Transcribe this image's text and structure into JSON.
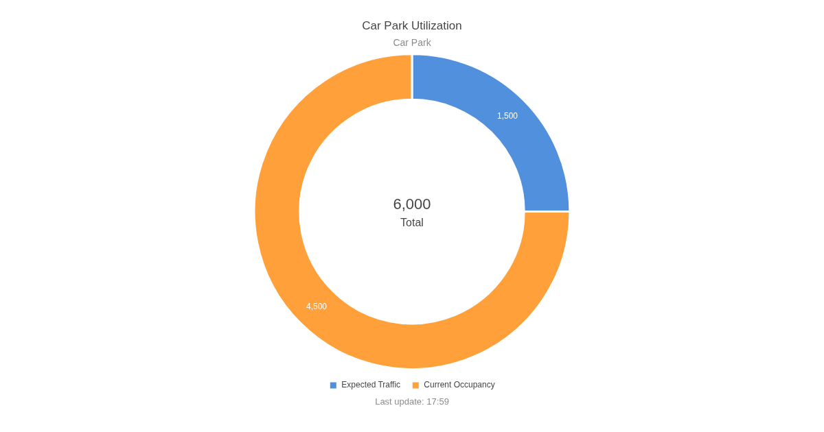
{
  "chart_data": {
    "type": "donut",
    "title": "Car Park Utilization",
    "subtitle": "Car Park",
    "categories": [
      "Expected Traffic",
      "Current Occupancy"
    ],
    "values": [
      1500,
      4500
    ],
    "colors": [
      "#5090dc",
      "#ffa03a"
    ],
    "value_labels": [
      "1,500",
      "4,500"
    ],
    "legend": "bottom",
    "annotations": [
      "6,000",
      "Total",
      "Last update: 17:59"
    ]
  }
}
